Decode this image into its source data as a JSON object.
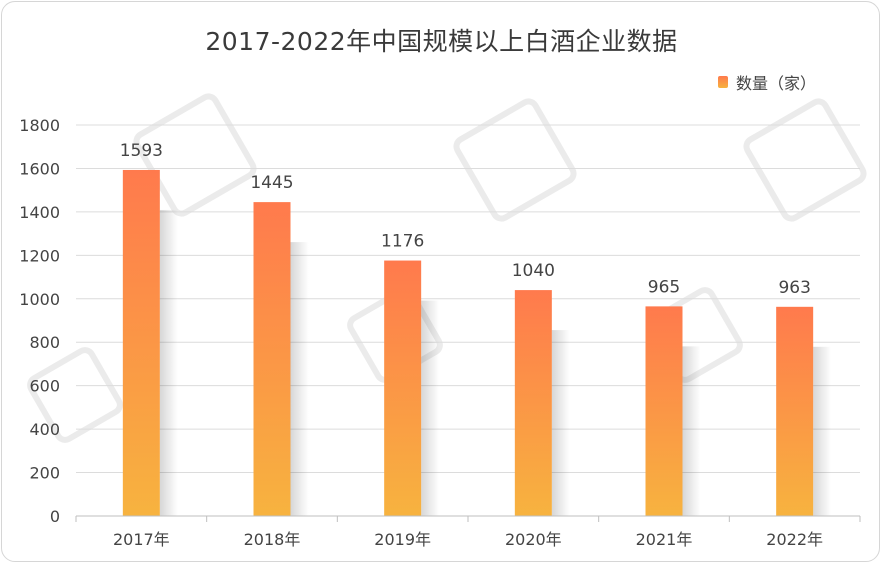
{
  "chart_data": {
    "type": "bar",
    "title": "2017-2022年中国规模以上白酒企业数据",
    "categories": [
      "2017年",
      "2018年",
      "2019年",
      "2020年",
      "2021年",
      "2022年"
    ],
    "series": [
      {
        "name": "数量（家）",
        "values": [
          1593,
          1445,
          1176,
          1040,
          965,
          963
        ]
      }
    ],
    "ylim": [
      0,
      1800
    ],
    "yticks": [
      0,
      200,
      400,
      600,
      800,
      1000,
      1200,
      1400,
      1600,
      1800
    ],
    "grid": true,
    "legend_position": "top-right",
    "colors": {
      "bar_top": "#ff7a4d",
      "bar_bottom": "#f7b33f",
      "grid": "#dcdcdc",
      "axis": "#bfbfbf"
    }
  }
}
